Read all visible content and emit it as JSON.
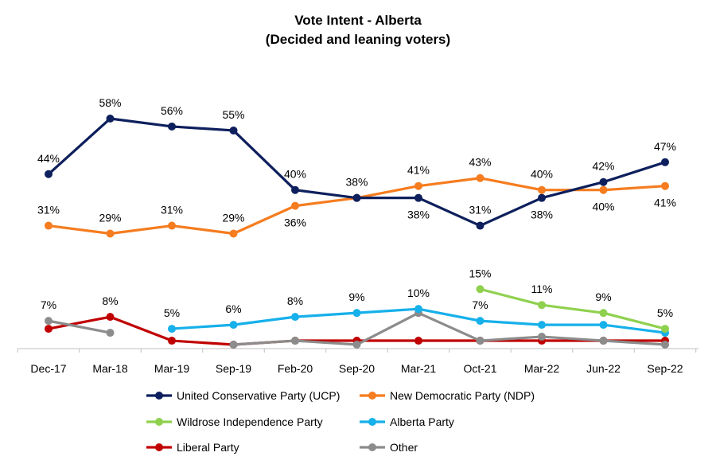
{
  "chart_data": {
    "type": "line",
    "title": "Vote Intent - Alberta",
    "subtitle": "(Decided and leaning voters)",
    "categories": [
      "Dec-17",
      "Mar-18",
      "Mar-19",
      "Sep-19",
      "Feb-20",
      "Sep-20",
      "Mar-21",
      "Oct-21",
      "Mar-22",
      "Jun-22",
      "Sep-22"
    ],
    "ylim": [
      0,
      60
    ],
    "grid": false,
    "legend_position": "bottom",
    "series": [
      {
        "name": "United Conservative Party (UCP)",
        "color": "#0d1f5c",
        "values": [
          44,
          58,
          56,
          55,
          40,
          38,
          38,
          31,
          38,
          42,
          47
        ],
        "labels": [
          "44%",
          "58%",
          "56%",
          "55%",
          "40%",
          "38%",
          "38%",
          "31%",
          "38%",
          "42%",
          "47%"
        ],
        "label_pos": [
          "above",
          "above",
          "above",
          "above",
          "above",
          "above",
          "below",
          "above",
          "below",
          "above",
          "above"
        ]
      },
      {
        "name": "New Democratic Party (NDP)",
        "color": "#f57c1f",
        "values": [
          31,
          29,
          31,
          29,
          36,
          38,
          41,
          43,
          40,
          40,
          41
        ],
        "labels": [
          "31%",
          "29%",
          "31%",
          "29%",
          "36%",
          "",
          "41%",
          "43%",
          "40%",
          "40%",
          "41%"
        ],
        "label_pos": [
          "above",
          "above",
          "above",
          "above",
          "below",
          "above",
          "above",
          "above",
          "above",
          "below",
          "below"
        ]
      },
      {
        "name": "Wildrose Independence Party",
        "color": "#8fd14f",
        "values": [
          null,
          null,
          null,
          null,
          null,
          null,
          null,
          15,
          11,
          9,
          5
        ],
        "labels": [
          "",
          "",
          "",
          "",
          "",
          "",
          "",
          "15%",
          "11%",
          "9%",
          "5%"
        ],
        "label_pos": [
          "above",
          "above",
          "above",
          "above",
          "above",
          "above",
          "above",
          "above",
          "above",
          "above",
          "above"
        ]
      },
      {
        "name": "Alberta Party",
        "color": "#16b0ea",
        "values": [
          null,
          null,
          5,
          6,
          8,
          9,
          10,
          7,
          6,
          6,
          4
        ],
        "labels": [
          "",
          "",
          "5%",
          "6%",
          "8%",
          "9%",
          "10%",
          "7%",
          "",
          "",
          ""
        ],
        "label_pos": [
          "above",
          "above",
          "above",
          "above",
          "above",
          "above",
          "above",
          "above",
          "above",
          "above",
          "above"
        ]
      },
      {
        "name": "Liberal Party",
        "color": "#c00000",
        "values": [
          5,
          8,
          2,
          1,
          2,
          2,
          2,
          2,
          2,
          2,
          2
        ],
        "labels": [
          "",
          "8%",
          "",
          "",
          "",
          "",
          "",
          "",
          "",
          "",
          ""
        ],
        "label_pos": [
          "above",
          "above",
          "above",
          "above",
          "above",
          "above",
          "above",
          "above",
          "above",
          "above",
          "above"
        ]
      },
      {
        "name": "Other",
        "color": "#8c8c8c",
        "values": [
          7,
          4,
          null,
          1,
          2,
          1,
          9,
          2,
          3,
          2,
          1
        ],
        "labels": [
          "7%",
          "",
          "",
          "",
          "",
          "",
          "",
          "",
          "",
          "",
          ""
        ],
        "label_pos": [
          "above",
          "above",
          "above",
          "above",
          "above",
          "above",
          "above",
          "above",
          "above",
          "above",
          "above"
        ]
      }
    ]
  }
}
